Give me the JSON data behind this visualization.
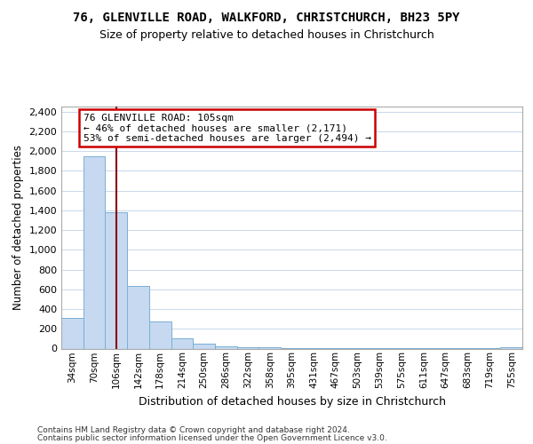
{
  "title1": "76, GLENVILLE ROAD, WALKFORD, CHRISTCHURCH, BH23 5PY",
  "title2": "Size of property relative to detached houses in Christchurch",
  "xlabel": "Distribution of detached houses by size in Christchurch",
  "ylabel": "Number of detached properties",
  "bar_labels": [
    "34sqm",
    "70sqm",
    "106sqm",
    "142sqm",
    "178sqm",
    "214sqm",
    "250sqm",
    "286sqm",
    "322sqm",
    "358sqm",
    "395sqm",
    "431sqm",
    "467sqm",
    "503sqm",
    "539sqm",
    "575sqm",
    "611sqm",
    "647sqm",
    "683sqm",
    "719sqm",
    "755sqm"
  ],
  "bar_values": [
    310,
    1950,
    1380,
    630,
    270,
    100,
    50,
    25,
    15,
    10,
    8,
    5,
    4,
    3,
    3,
    2,
    2,
    2,
    2,
    2,
    15
  ],
  "bar_color": "#c6d9f0",
  "bar_edge_color": "#7bafd4",
  "property_size_index": 2,
  "annotation_line1": "76 GLENVILLE ROAD: 105sqm",
  "annotation_line2": "← 46% of detached houses are smaller (2,171)",
  "annotation_line3": "53% of semi-detached houses are larger (2,494) →",
  "vline_color": "#8b0000",
  "annotation_box_edgecolor": "#cc0000",
  "ylim": [
    0,
    2450
  ],
  "yticks": [
    0,
    200,
    400,
    600,
    800,
    1000,
    1200,
    1400,
    1600,
    1800,
    2000,
    2200,
    2400
  ],
  "footer1": "Contains HM Land Registry data © Crown copyright and database right 2024.",
  "footer2": "Contains public sector information licensed under the Open Government Licence v3.0.",
  "bg_color": "#ffffff",
  "grid_color": "#c8d8ea"
}
